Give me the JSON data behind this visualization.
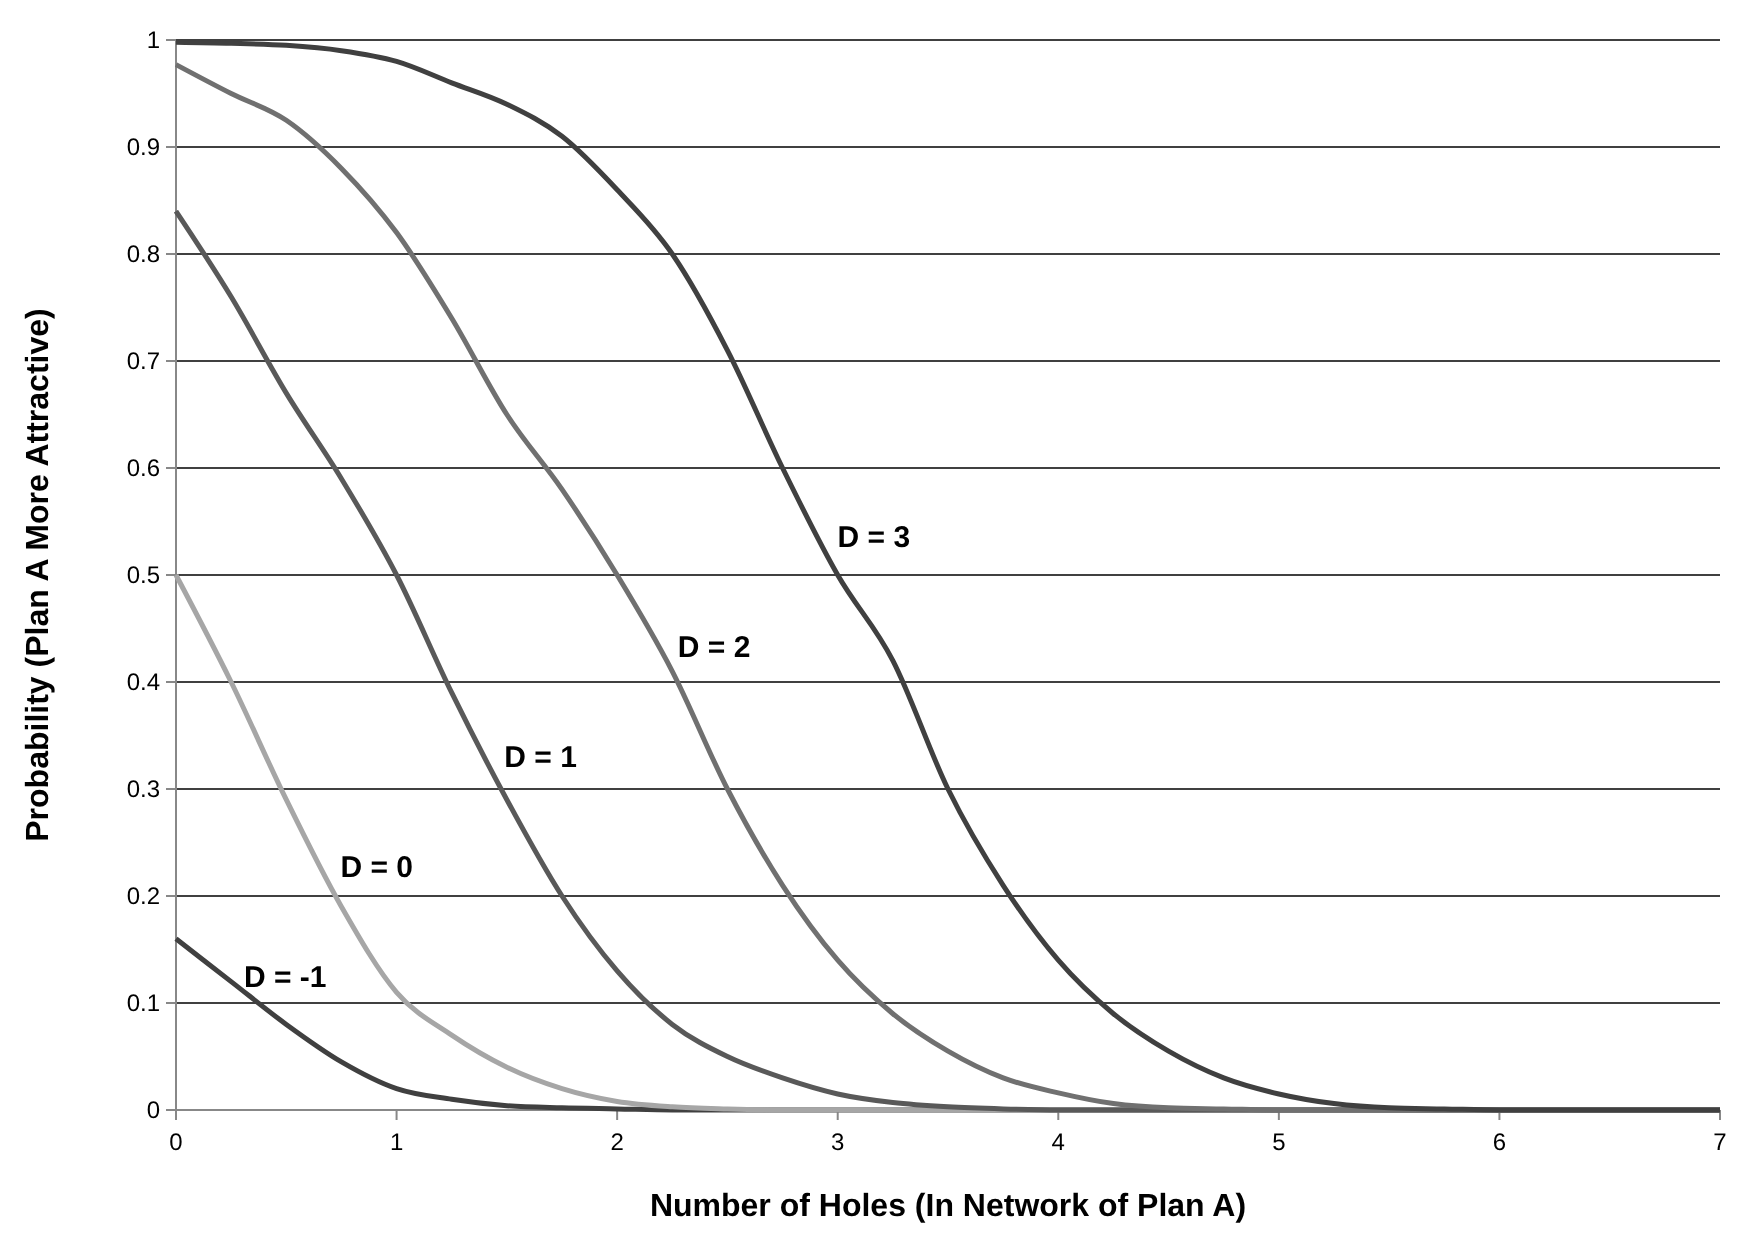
{
  "chart_data": {
    "type": "line",
    "xlabel": "Number of Holes (In Network of Plan A)",
    "ylabel": "Probability (Plan A More Attractive)",
    "xlim": [
      0,
      7
    ],
    "xticks": [
      0,
      1,
      2,
      3,
      4,
      5,
      6,
      7
    ],
    "ylim": [
      0,
      1
    ],
    "yticks": [
      0,
      0.1,
      0.2,
      0.3,
      0.4,
      0.5,
      0.6,
      0.7,
      0.8,
      0.9,
      1
    ],
    "grid": "y",
    "marker": "none",
    "line_style": "solid",
    "x": [
      0,
      0.25,
      0.5,
      0.75,
      1,
      1.25,
      1.5,
      1.75,
      2,
      2.25,
      2.5,
      2.75,
      3,
      3.25,
      3.5,
      3.75,
      4,
      4.25,
      4.5,
      4.75,
      5,
      5.25,
      5.5,
      5.75,
      6,
      6.5,
      7
    ],
    "series": [
      {
        "name": "D = -1",
        "color": "#404040",
        "values": [
          0.16,
          0.12,
          0.08,
          0.045,
          0.02,
          0.01,
          0.004,
          0.002,
          0.001,
          0,
          0,
          0,
          0,
          0,
          0,
          0,
          0,
          0,
          0,
          0,
          0,
          0,
          0,
          0,
          0,
          0,
          0
        ]
      },
      {
        "name": "D = 0",
        "color": "#a6a6a6",
        "values": [
          0.5,
          0.4,
          0.29,
          0.19,
          0.11,
          0.07,
          0.04,
          0.02,
          0.008,
          0.003,
          0.001,
          0,
          0,
          0,
          0,
          0,
          0,
          0,
          0,
          0,
          0,
          0,
          0,
          0,
          0,
          0,
          0
        ]
      },
      {
        "name": "D = 1",
        "color": "#595959",
        "values": [
          0.84,
          0.76,
          0.67,
          0.59,
          0.5,
          0.39,
          0.29,
          0.2,
          0.13,
          0.08,
          0.05,
          0.03,
          0.015,
          0.007,
          0.003,
          0.001,
          0,
          0,
          0,
          0,
          0,
          0,
          0,
          0,
          0,
          0,
          0
        ]
      },
      {
        "name": "D = 2",
        "color": "#707070",
        "values": [
          0.977,
          0.95,
          0.925,
          0.88,
          0.82,
          0.74,
          0.65,
          0.58,
          0.5,
          0.41,
          0.3,
          0.21,
          0.14,
          0.09,
          0.055,
          0.03,
          0.016,
          0.006,
          0.002,
          0.001,
          0,
          0,
          0,
          0,
          0,
          0,
          0
        ]
      },
      {
        "name": "D = 3",
        "color": "#404040",
        "values": [
          0.998,
          0.997,
          0.995,
          0.99,
          0.98,
          0.96,
          0.94,
          0.91,
          0.86,
          0.8,
          0.71,
          0.6,
          0.5,
          0.42,
          0.3,
          0.21,
          0.14,
          0.09,
          0.055,
          0.03,
          0.015,
          0.006,
          0.002,
          0.001,
          0,
          0,
          0
        ]
      }
    ]
  }
}
